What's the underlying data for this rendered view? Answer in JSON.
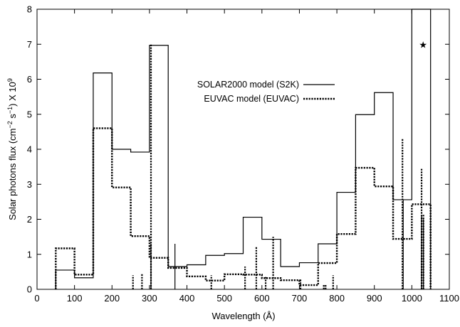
{
  "chart_data": {
    "type": "line",
    "title": "",
    "xlabel": "Wavelength (Å)",
    "ylabel_parts": [
      "Solar photons flux (cm",
      "−2",
      " s",
      "−1",
      ") X 10",
      "9"
    ],
    "xlim": [
      0,
      1100
    ],
    "ylim": [
      0,
      8
    ],
    "xticks": [
      0,
      100,
      200,
      300,
      400,
      500,
      600,
      700,
      800,
      900,
      1000,
      1100
    ],
    "yticks": [
      0,
      1,
      2,
      3,
      4,
      5,
      6,
      7,
      8
    ],
    "grid": false,
    "legend_position": "upper-center",
    "annotation": {
      "symbol": "★",
      "x": 1030,
      "y": 7.0
    },
    "series": [
      {
        "name": "SOLAR2000 model (S2K)",
        "style": "solid",
        "step_x": [
          50,
          100,
          150,
          200,
          250,
          300,
          350,
          400,
          450,
          500,
          550,
          600,
          650,
          700,
          750,
          800,
          850,
          900,
          950,
          1000,
          1050
        ],
        "step_y": [
          0.55,
          0.33,
          6.18,
          4.0,
          3.92,
          6.97,
          0.65,
          0.7,
          0.97,
          1.02,
          2.06,
          1.43,
          0.65,
          0.76,
          1.3,
          2.77,
          4.99,
          5.62,
          2.56,
          8.0
        ],
        "lines_x": [
          304,
          368,
          977,
          1026,
          1031
        ],
        "lines_y": [
          1.3,
          1.3,
          2.55,
          2.1,
          2.0
        ]
      },
      {
        "name": "EUVAC model (EUVAC)",
        "style": "dotted",
        "step_x": [
          50,
          100,
          150,
          200,
          250,
          300,
          350,
          400,
          450,
          500,
          550,
          600,
          650,
          700,
          750,
          800,
          850,
          900,
          950,
          1000,
          1050
        ],
        "step_y": [
          1.17,
          0.42,
          4.6,
          2.91,
          1.52,
          0.9,
          0.61,
          0.37,
          0.25,
          0.43,
          0.42,
          0.32,
          0.26,
          0.12,
          0.75,
          1.58,
          3.47,
          2.94,
          1.44,
          2.43
        ],
        "lines_x": [
          256,
          280,
          304,
          465,
          555,
          585,
          610,
          630,
          703,
          765,
          770,
          790,
          975,
          1026,
          1031
        ],
        "lines_y": [
          0.4,
          0.45,
          7.0,
          0.4,
          0.65,
          1.22,
          0.35,
          1.5,
          0.3,
          0.15,
          0.15,
          0.4,
          4.3,
          3.45,
          2.15
        ]
      }
    ]
  }
}
